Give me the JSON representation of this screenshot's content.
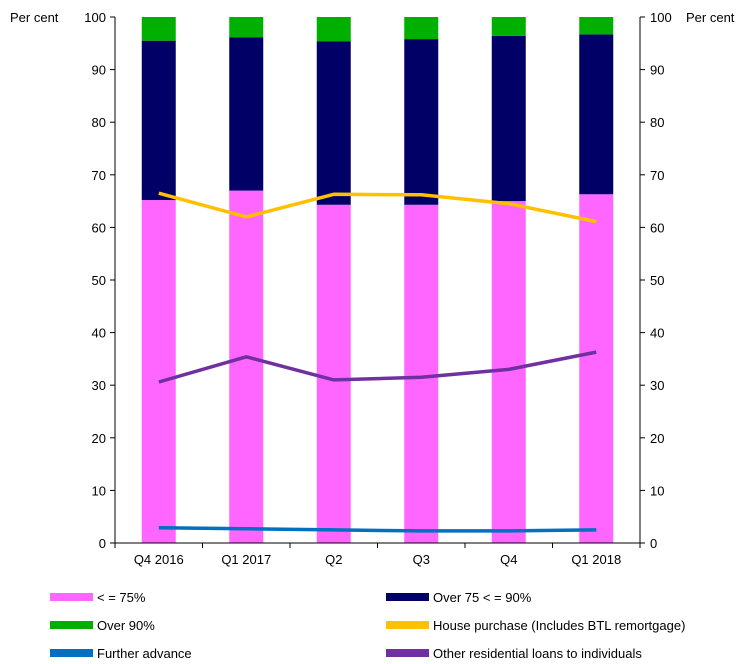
{
  "chart_data": {
    "type": "bar",
    "stacked": true,
    "left_unit": "Per cent",
    "right_unit": "Per cent",
    "categories": [
      "Q4 2016",
      "Q1 2017",
      "Q2",
      "Q3",
      "Q4",
      "Q1 2018"
    ],
    "ylim": [
      0,
      100
    ],
    "yticks": [
      0,
      10,
      20,
      30,
      40,
      50,
      60,
      70,
      80,
      90,
      100
    ],
    "bar_series": [
      {
        "name": "< = 75%",
        "color": "#ff66ff",
        "values": [
          65.2,
          67.0,
          64.3,
          64.3,
          65.0,
          66.3
        ]
      },
      {
        "name": "Over 75 < = 90%",
        "color": "#000066",
        "values": [
          30.3,
          29.1,
          31.1,
          31.5,
          31.4,
          30.4
        ]
      },
      {
        "name": "Over 90%",
        "color": "#00b000",
        "values": [
          4.5,
          3.9,
          4.6,
          4.2,
          3.6,
          3.3
        ]
      }
    ],
    "line_series": [
      {
        "name": "House purchase (Includes BTL remortgage)",
        "color": "#ffc000",
        "values": [
          66.5,
          62.0,
          66.3,
          66.2,
          64.5,
          61.1
        ]
      },
      {
        "name": "Further advance",
        "color": "#0070c0",
        "values": [
          2.9,
          2.7,
          2.5,
          2.3,
          2.3,
          2.5
        ]
      },
      {
        "name": "Other residential loans to individuals",
        "color": "#7030a0",
        "values": [
          30.6,
          35.4,
          31.0,
          31.5,
          33.0,
          36.3
        ]
      }
    ],
    "legend": {
      "placement": "bottom",
      "order": [
        [
          "< = 75%",
          "Over 75 < = 90%"
        ],
        [
          "Over 90%",
          "House purchase (Includes BTL remortgage)"
        ],
        [
          "Further advance",
          "Other residential loans to individuals"
        ]
      ]
    },
    "grid": false
  }
}
